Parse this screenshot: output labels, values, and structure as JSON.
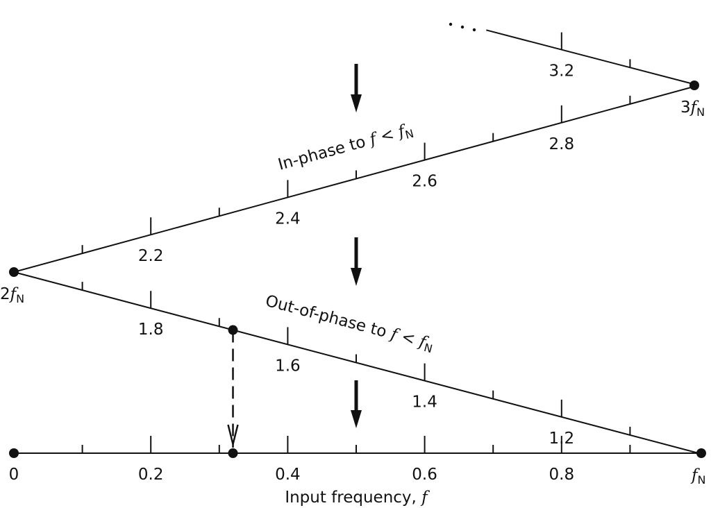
{
  "axis_title": "Input frequency, ",
  "axis_title_var": "f",
  "bottom_labels": [
    {
      "value": 0,
      "text": "0"
    },
    {
      "value": 0.2,
      "text": "0.2"
    },
    {
      "value": 0.4,
      "text": "0.4"
    },
    {
      "value": 0.6,
      "text": "0.6"
    },
    {
      "value": 0.8,
      "text": "0.8"
    }
  ],
  "middle_labels": [
    {
      "value": 1.2,
      "text": "1.2"
    },
    {
      "value": 1.4,
      "text": "1.4"
    },
    {
      "value": 1.6,
      "text": "1.6"
    },
    {
      "value": 1.8,
      "text": "1.8"
    }
  ],
  "upper_labels": [
    {
      "value": 2.2,
      "text": "2.2"
    },
    {
      "value": 2.4,
      "text": "2.4"
    },
    {
      "value": 2.6,
      "text": "2.6"
    },
    {
      "value": 2.8,
      "text": "2.8"
    }
  ],
  "top_labels": [
    {
      "value": 3.2,
      "text": "3.2"
    }
  ],
  "node_labels": {
    "fN": {
      "prefix": "",
      "var": "f",
      "sub": "N"
    },
    "2fN": {
      "prefix": "2",
      "var": "f",
      "sub": "N"
    },
    "3fN": {
      "prefix": "3",
      "var": "f",
      "sub": "N"
    }
  },
  "in_phase_text": "In-phase to ",
  "out_phase_text": "Out-of-phase to ",
  "compare": {
    "var": "f",
    "op": " < ",
    "var2": "f",
    "sub": "N"
  },
  "example_point": 1.68,
  "aliased_point": 0.32
}
